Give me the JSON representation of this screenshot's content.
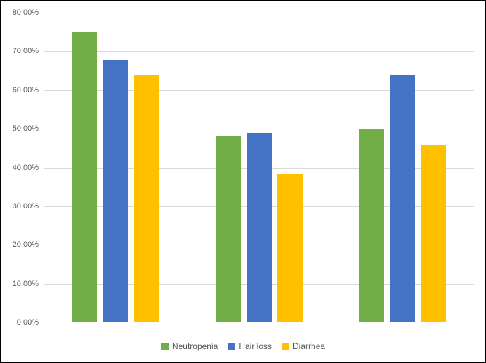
{
  "chart_data": {
    "type": "bar",
    "title": "",
    "categories": [
      "",
      "",
      ""
    ],
    "series": [
      {
        "name": "Neutropenia",
        "color": "#70AD47",
        "values": [
          75.0,
          48.0,
          50.0
        ]
      },
      {
        "name": "Hair loss",
        "color": "#4472C4",
        "values": [
          67.7,
          48.9,
          63.9
        ]
      },
      {
        "name": "Diarrhea",
        "color": "#FFC000",
        "values": [
          64.0,
          38.2,
          45.8
        ]
      }
    ],
    "y_axis": {
      "min": 0,
      "max": 80,
      "step": 10,
      "tick_labels": [
        "0.00%",
        "10.00%",
        "20.00%",
        "30.00%",
        "40.00%",
        "50.00%",
        "60.00%",
        "70.00%",
        "80.00%"
      ]
    },
    "x_axis": {
      "tick_labels_visible": false
    },
    "grid": true,
    "legend_position": "bottom"
  },
  "styles": {
    "background": "#FFFFFF",
    "frame_border_color": "#000000",
    "gridline_color": "#D9D9D9",
    "axis_text_color": "#595959"
  }
}
